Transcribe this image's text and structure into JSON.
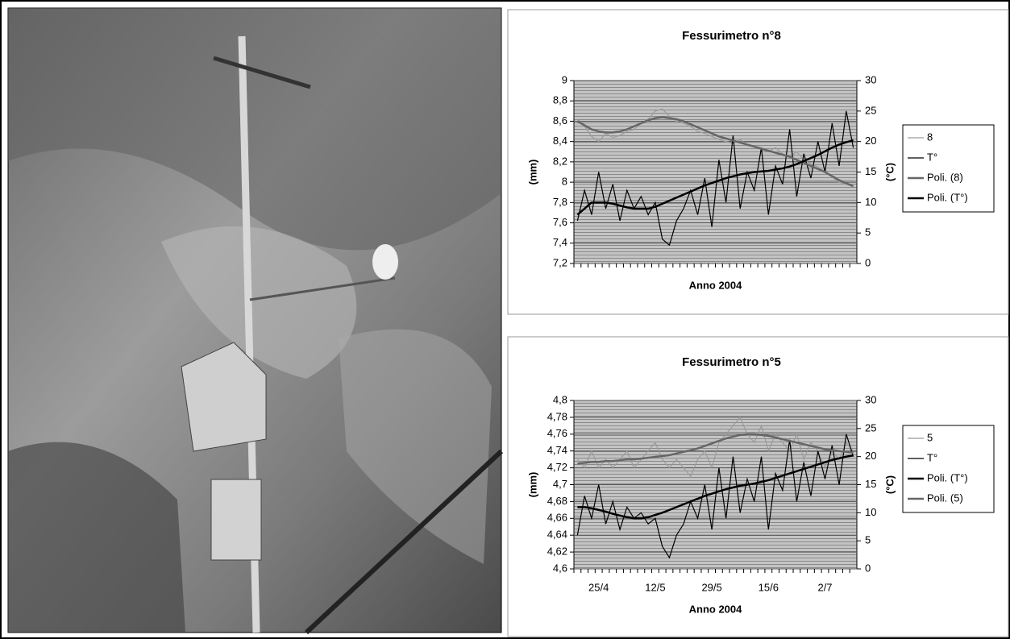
{
  "chart_data": [
    {
      "type": "line",
      "title": "Fessurimetro n°8",
      "x_label": "Anno 2004",
      "y_label": "(mm)",
      "y2_label": "(°C)",
      "categories": [
        null,
        null,
        null,
        null,
        null,
        null,
        null,
        null,
        null,
        null,
        null,
        null,
        null,
        null,
        null,
        null,
        null,
        null,
        null,
        null,
        null,
        null,
        null,
        null,
        null,
        null,
        null,
        null,
        null,
        null,
        null,
        null,
        null,
        null,
        null,
        null,
        null,
        null,
        null,
        null
      ],
      "ylim": [
        7.2,
        9
      ],
      "yticks": [
        {
          "value": 7.2,
          "label": "7,2"
        },
        {
          "value": 7.4,
          "label": "7,4"
        },
        {
          "value": 7.6,
          "label": "7,6"
        },
        {
          "value": 7.8,
          "label": "7,8"
        },
        8,
        {
          "value": 8.2,
          "label": "8,2"
        },
        {
          "value": 8.4,
          "label": "8,4"
        },
        {
          "value": 8.6,
          "label": "8,6"
        },
        {
          "value": 8.8,
          "label": "8,8"
        },
        9
      ],
      "y2lim": [
        0,
        30
      ],
      "y2ticks": [
        0,
        5,
        10,
        15,
        20,
        25,
        30
      ],
      "grid": true,
      "series": [
        {
          "name": "8",
          "color": "#9a9a9a",
          "values": [
            8.62,
            8.55,
            8.45,
            8.4,
            8.48,
            8.44,
            8.46,
            8.5,
            8.52,
            8.58,
            8.62,
            8.7,
            8.72,
            8.65,
            8.6,
            8.58,
            8.55,
            8.5,
            8.48,
            8.45,
            8.42,
            8.4,
            8.38,
            8.42,
            8.36,
            8.35,
            8.32,
            8.3,
            8.34,
            8.28,
            8.25,
            8.3,
            8.22,
            8.18,
            8.15,
            8.1,
            8.05,
            8.0,
            7.98,
            7.96
          ]
        },
        {
          "name": "T°",
          "color": "#000000",
          "axis": "y2",
          "values": [
            7,
            12,
            8,
            15,
            9,
            13,
            7,
            12,
            9,
            11,
            8,
            10,
            4,
            3,
            7,
            9,
            12,
            8,
            14,
            6,
            17,
            10,
            21,
            9,
            15,
            12,
            19,
            8,
            16,
            13,
            22,
            11,
            18,
            14,
            20,
            15,
            23,
            16,
            25,
            19
          ]
        },
        {
          "name": "Poli. (8)",
          "color": "#666666",
          "values": [
            8.6,
            8.56,
            8.52,
            8.5,
            8.49,
            8.49,
            8.5,
            8.52,
            8.55,
            8.58,
            8.61,
            8.63,
            8.64,
            8.63,
            8.62,
            8.6,
            8.57,
            8.54,
            8.51,
            8.48,
            8.45,
            8.43,
            8.41,
            8.39,
            8.37,
            8.35,
            8.33,
            8.31,
            8.29,
            8.27,
            8.25,
            8.22,
            8.19,
            8.16,
            8.13,
            8.1,
            8.06,
            8.02,
            7.99,
            7.96
          ]
        },
        {
          "name": "Poli. (T°)",
          "color": "#000000",
          "axis": "y2",
          "values": [
            8,
            9,
            10,
            10,
            10,
            9.8,
            9.5,
            9.2,
            9,
            9,
            9,
            9.3,
            9.8,
            10.3,
            10.8,
            11.3,
            11.8,
            12.3,
            12.8,
            13.2,
            13.6,
            14,
            14.3,
            14.6,
            14.8,
            15,
            15.1,
            15.2,
            15.4,
            15.6,
            15.9,
            16.3,
            16.8,
            17.3,
            17.8,
            18.4,
            19,
            19.5,
            19.9,
            20.2
          ]
        }
      ]
    },
    {
      "type": "line",
      "title": "Fessurimetro n°5",
      "x_label": "Anno 2004",
      "y_label": "(mm)",
      "y2_label": "(°C)",
      "categories": [
        null,
        null,
        null,
        "25/4",
        null,
        null,
        null,
        null,
        null,
        null,
        null,
        "12/5",
        null,
        null,
        null,
        null,
        null,
        null,
        null,
        "29/5",
        null,
        null,
        null,
        null,
        null,
        null,
        null,
        "15/6",
        null,
        null,
        null,
        null,
        null,
        null,
        null,
        "2/7",
        null,
        null,
        null,
        null
      ],
      "ylim": [
        4.6,
        4.8
      ],
      "yticks": [
        {
          "value": 4.6,
          "label": "4,6"
        },
        {
          "value": 4.62,
          "label": "4,62"
        },
        {
          "value": 4.64,
          "label": "4,64"
        },
        {
          "value": 4.66,
          "label": "4,66"
        },
        {
          "value": 4.68,
          "label": "4,68"
        },
        {
          "value": 4.7,
          "label": "4,7"
        },
        {
          "value": 4.72,
          "label": "4,72"
        },
        {
          "value": 4.74,
          "label": "4,74"
        },
        {
          "value": 4.76,
          "label": "4,76"
        },
        {
          "value": 4.78,
          "label": "4,78"
        },
        {
          "value": 4.8,
          "label": "4,8"
        }
      ],
      "y2lim": [
        0,
        30
      ],
      "y2ticks": [
        0,
        5,
        10,
        15,
        20,
        25,
        30
      ],
      "grid": true,
      "series": [
        {
          "name": "5",
          "color": "#9a9a9a",
          "values": [
            4.73,
            4.72,
            4.74,
            4.72,
            4.73,
            4.72,
            4.73,
            4.74,
            4.72,
            4.73,
            4.74,
            4.75,
            4.73,
            4.72,
            4.73,
            4.72,
            4.71,
            4.73,
            4.74,
            4.72,
            4.75,
            4.76,
            4.77,
            4.78,
            4.76,
            4.75,
            4.77,
            4.74,
            4.76,
            4.75,
            4.74,
            4.76,
            4.73,
            4.75,
            4.74,
            4.72,
            4.74,
            4.73,
            4.75,
            4.74
          ]
        },
        {
          "name": "T°",
          "color": "#000000",
          "axis": "y2",
          "values": [
            6,
            13,
            9,
            15,
            8,
            12,
            7,
            11,
            9,
            10,
            8,
            9,
            4,
            2,
            6,
            8,
            12,
            9,
            15,
            7,
            18,
            9,
            20,
            10,
            16,
            12,
            20,
            7,
            17,
            14,
            23,
            12,
            19,
            13,
            21,
            16,
            22,
            15,
            24,
            20
          ]
        },
        {
          "name": "Poli. (T°)",
          "color": "#000000",
          "axis": "y2",
          "values": [
            11,
            11,
            10.8,
            10.5,
            10.2,
            9.8,
            9.5,
            9.2,
            9,
            9,
            9.2,
            9.6,
            10,
            10.5,
            11,
            11.5,
            12,
            12.5,
            13,
            13.4,
            13.8,
            14.2,
            14.5,
            14.8,
            15,
            15.2,
            15.5,
            15.8,
            16.2,
            16.6,
            17,
            17.4,
            17.8,
            18.2,
            18.6,
            19,
            19.4,
            19.7,
            20,
            20.2
          ]
        },
        {
          "name": "Poli. (5)",
          "color": "#666666",
          "values": [
            4.725,
            4.726,
            4.727,
            4.727,
            4.728,
            4.728,
            4.729,
            4.73,
            4.73,
            4.731,
            4.732,
            4.733,
            4.734,
            4.735,
            4.737,
            4.739,
            4.741,
            4.743,
            4.746,
            4.749,
            4.752,
            4.755,
            4.757,
            4.759,
            4.76,
            4.76,
            4.759,
            4.758,
            4.756,
            4.754,
            4.752,
            4.75,
            4.748,
            4.746,
            4.744,
            4.742,
            4.741,
            4.74,
            4.739,
            4.738
          ]
        }
      ]
    }
  ]
}
